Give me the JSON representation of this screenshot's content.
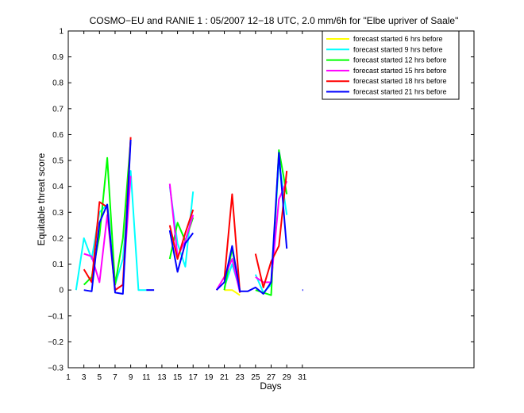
{
  "chart_data": {
    "type": "line",
    "title": "COSMO−EU and RANIE 1 : 05/2007 12−18 UTC, 2.0 mm/6h for \"Elbe upriver of Saale\"",
    "xlabel": "Days",
    "ylabel": "Equitable threat score",
    "xlim": [
      1,
      53
    ],
    "ylim": [
      -0.3,
      1
    ],
    "x_ticks": [
      1,
      3,
      5,
      7,
      9,
      11,
      13,
      15,
      17,
      19,
      21,
      23,
      25,
      27,
      29,
      31
    ],
    "y_ticks": [
      -0.3,
      -0.2,
      -0.1,
      0,
      0.1,
      0.2,
      0.3,
      0.4,
      0.5,
      0.6,
      0.7,
      0.8,
      0.9,
      1
    ],
    "y_tick_labels": [
      "−0.3",
      "−0.2",
      "−0.1",
      "0",
      "0.1",
      "0.2",
      "0.3",
      "0.4",
      "0.5",
      "0.6",
      "0.7",
      "0.8",
      "0.9",
      "1"
    ],
    "legend_position": "top-right",
    "series": [
      {
        "name": "forecast started 6 hrs before",
        "color": "#ffff00",
        "segments": [
          [
            [
              21,
              0.0
            ],
            [
              22,
              0.0
            ],
            [
              23,
              -0.02
            ]
          ]
        ]
      },
      {
        "name": "forecast started 9 hrs before",
        "color": "#00ffff",
        "segments": [
          [
            [
              2,
              0.0
            ],
            [
              3,
              0.2
            ],
            [
              4,
              0.12
            ],
            [
              5,
              0.3
            ],
            [
              6,
              0.33
            ],
            [
              7,
              0.02
            ],
            [
              8,
              0.12
            ],
            [
              9,
              0.46
            ],
            [
              10,
              0.0
            ],
            [
              11,
              0.0
            ]
          ],
          [
            [
              14,
              0.4
            ],
            [
              15,
              0.18
            ],
            [
              16,
              0.09
            ],
            [
              17,
              0.38
            ]
          ],
          [
            [
              21,
              0.01
            ],
            [
              22,
              0.1
            ],
            [
              23,
              0.0
            ]
          ],
          [
            [
              25,
              0.06
            ],
            [
              26,
              -0.01
            ],
            [
              27,
              0.02
            ],
            [
              28,
              0.5
            ],
            [
              29,
              0.29
            ]
          ]
        ]
      },
      {
        "name": "forecast started 12 hrs before",
        "color": "#00ff00",
        "segments": [
          [
            [
              3,
              0.02
            ],
            [
              4,
              0.05
            ],
            [
              5,
              0.21
            ],
            [
              6,
              0.51
            ],
            [
              7,
              0.02
            ],
            [
              8,
              0.2
            ],
            [
              9,
              0.58
            ]
          ],
          [
            [
              14,
              0.12
            ],
            [
              15,
              0.26
            ],
            [
              16,
              0.19
            ],
            [
              17,
              0.28
            ]
          ],
          [
            [
              21,
              0.0
            ],
            [
              22,
              0.16
            ],
            [
              23,
              -0.01
            ]
          ],
          [
            [
              25,
              0.0
            ],
            [
              26,
              -0.01
            ],
            [
              27,
              -0.02
            ],
            [
              28,
              0.54
            ],
            [
              29,
              0.37
            ]
          ]
        ]
      },
      {
        "name": "forecast started 15 hrs before",
        "color": "#ff00ff",
        "segments": [
          [
            [
              3,
              0.14
            ],
            [
              4,
              0.13
            ],
            [
              5,
              0.03
            ],
            [
              6,
              0.29
            ],
            [
              7,
              0.0
            ],
            [
              8,
              0.02
            ],
            [
              9,
              0.44
            ]
          ],
          [
            [
              14,
              0.41
            ],
            [
              15,
              0.13
            ],
            [
              16,
              0.19
            ],
            [
              17,
              0.29
            ]
          ],
          [
            [
              20,
              0.0
            ],
            [
              21,
              0.05
            ],
            [
              22,
              0.12
            ],
            [
              23,
              -0.01
            ]
          ],
          [
            [
              25,
              0.05
            ],
            [
              26,
              0.03
            ],
            [
              27,
              0.03
            ],
            [
              28,
              0.35
            ],
            [
              29,
              0.42
            ]
          ]
        ]
      },
      {
        "name": "forecast started 18 hrs before",
        "color": "#ff0000",
        "segments": [
          [
            [
              3,
              0.08
            ],
            [
              4,
              0.03
            ],
            [
              5,
              0.34
            ],
            [
              6,
              0.32
            ],
            [
              7,
              0.0
            ],
            [
              8,
              0.02
            ],
            [
              9,
              0.59
            ]
          ],
          [
            [
              14,
              0.25
            ],
            [
              15,
              0.12
            ],
            [
              16,
              0.22
            ],
            [
              17,
              0.31
            ]
          ],
          [
            [
              21,
              0.04
            ],
            [
              22,
              0.37
            ],
            [
              23,
              -0.01
            ]
          ],
          [
            [
              25,
              0.14
            ],
            [
              26,
              0.01
            ],
            [
              27,
              0.11
            ],
            [
              28,
              0.17
            ],
            [
              29,
              0.46
            ]
          ]
        ]
      },
      {
        "name": "forecast started 21 hrs before",
        "color": "#0000ff",
        "segments": [
          [
            [
              3,
              0.0
            ],
            [
              4,
              -0.005
            ],
            [
              5,
              0.26
            ],
            [
              6,
              0.33
            ],
            [
              7,
              -0.01
            ],
            [
              8,
              -0.015
            ],
            [
              9,
              0.58
            ]
          ],
          [
            [
              11,
              0.0
            ],
            [
              12,
              0.0
            ]
          ],
          [
            [
              14,
              0.23
            ],
            [
              15,
              0.07
            ],
            [
              16,
              0.18
            ],
            [
              17,
              0.22
            ]
          ],
          [
            [
              20,
              0.0
            ],
            [
              21,
              0.03
            ],
            [
              22,
              0.17
            ],
            [
              23,
              -0.005
            ],
            [
              24,
              -0.005
            ],
            [
              25,
              0.01
            ],
            [
              26,
              -0.015
            ],
            [
              27,
              0.03
            ],
            [
              28,
              0.53
            ],
            [
              29,
              0.16
            ]
          ],
          [
            [
              31,
              0.0
            ],
            [
              31.1,
              0.0
            ]
          ]
        ]
      }
    ]
  }
}
